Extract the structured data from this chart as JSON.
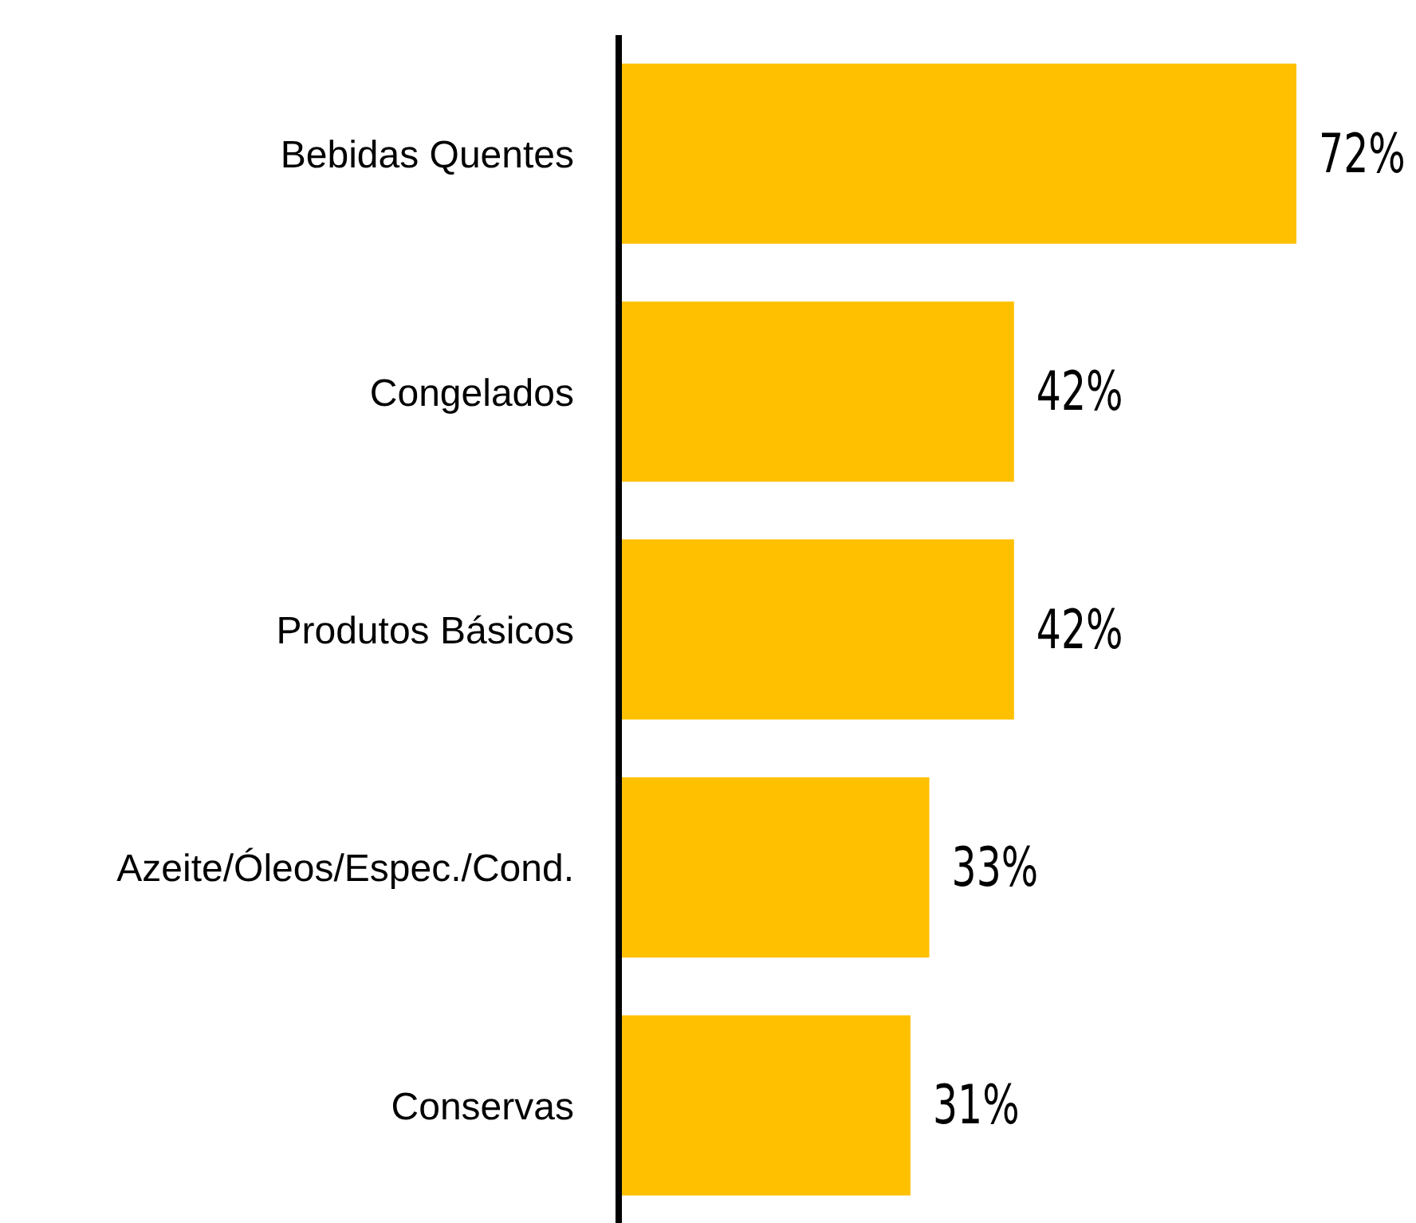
{
  "chart_data": {
    "type": "bar",
    "orientation": "horizontal",
    "categories": [
      "Bebidas Quentes",
      "Congelados",
      "Produtos Básicos",
      "Azeite/Óleos/Espec./Cond.",
      "Conservas"
    ],
    "values": [
      72,
      42,
      42,
      33,
      31
    ],
    "value_labels": [
      "72%",
      "42%",
      "42%",
      "33%",
      "31%"
    ],
    "color": "#ffc000",
    "grid": false,
    "legend": false
  }
}
